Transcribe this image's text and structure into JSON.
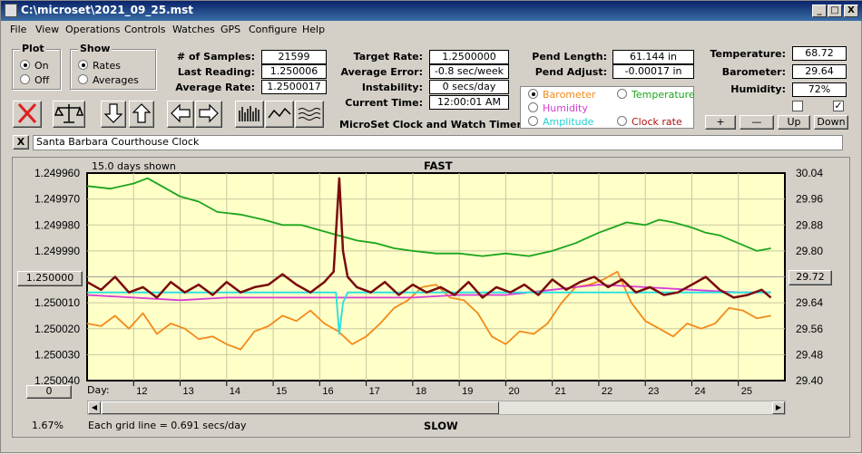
{
  "window": {
    "title": "C:\\microset\\2021_09_25.mst",
    "min_label": "_",
    "max_label": "□",
    "close_label": "X"
  },
  "menu": [
    "File",
    "View",
    "Operations",
    "Controls",
    "Watches",
    "GPS",
    "Configure",
    "Help"
  ],
  "plot_group": {
    "caption": "Plot",
    "on_label": "On",
    "off_label": "Off",
    "selected": "On"
  },
  "show_group": {
    "caption": "Show",
    "rates_label": "Rates",
    "averages_label": "Averages",
    "selected": "Rates"
  },
  "stats": {
    "samples_label": "# of Samples:",
    "samples": "21599",
    "last_label": "Last Reading:",
    "last": "1.250006",
    "avg_label": "Average Rate:",
    "avg": "1.2500017",
    "target_label": "Target Rate:",
    "target": "1.2500000",
    "avgerr_label": "Average Error:",
    "avgerr": "-0.8 sec/week",
    "instab_label": "Instability:",
    "instab": "0 secs/day",
    "time_label": "Current Time:",
    "time": "12:00:01 AM",
    "pendlen_label": "Pend Length:",
    "pendlen": "61.144 in",
    "pendadj_label": "Pend Adjust:",
    "pendadj": "-0.00017 in",
    "temp_label": "Temperature:",
    "temp": "68.72",
    "baro_label": "Barometer:",
    "baro": "29.64",
    "hum_label": "Humidity:",
    "hum": "72%"
  },
  "app_name": "MicroSet Clock and Watch Timer",
  "legend": {
    "barometer": "Barometer",
    "temperature": "Temperature",
    "humidity": "Humidity",
    "amplitude": "Amplitude",
    "clockrate": "Clock rate",
    "selected": "Barometer"
  },
  "adjust_buttons": {
    "plus": "+",
    "minus": "—",
    "up": "Up",
    "down": "Down"
  },
  "clock_name": "Santa Barbara Courthouse Clock",
  "clear_label": "X",
  "chart_data": {
    "type": "line",
    "days_shown": "15.0 days shown",
    "top_label": "FAST",
    "bottom_label": "SLOW",
    "grid_note": "Each grid line = 0.691 secs/day",
    "percent": "1.67%",
    "xlabel": "Day:",
    "x_ticks": [
      "12",
      "13",
      "14",
      "15",
      "16",
      "17",
      "18",
      "19",
      "20",
      "21",
      "22",
      "23",
      "24",
      "25"
    ],
    "left_ticks": [
      "1.249960",
      "1.249970",
      "1.249980",
      "1.249990",
      "1.250000",
      "1.250010",
      "1.250020",
      "1.250030",
      "1.250040"
    ],
    "right_ticks": [
      "30.04",
      "29.96",
      "29.88",
      "29.80",
      "29.72",
      "29.64",
      "29.56",
      "29.48",
      "29.40"
    ],
    "left_box": "1.250000",
    "right_box": "29.72",
    "bottom_box": "0",
    "xlim": [
      11.0,
      26.0
    ],
    "ylim_left": [
      1.24996,
      1.25004
    ],
    "series": [
      {
        "name": "Temperature",
        "color": "#1BA51B",
        "x": [
          11.0,
          11.5,
          12.0,
          12.3,
          12.6,
          13.0,
          13.4,
          13.8,
          14.3,
          14.8,
          15.2,
          15.6,
          16.0,
          16.4,
          16.8,
          17.2,
          17.6,
          18.0,
          18.5,
          19.0,
          19.5,
          20.0,
          20.5,
          21.0,
          21.5,
          22.0,
          22.3,
          22.6,
          23.0,
          23.3,
          23.6,
          24.0,
          24.3,
          24.6,
          25.0,
          25.4,
          25.7
        ],
        "y": [
          1.249965,
          1.249966,
          1.249964,
          1.249962,
          1.249965,
          1.249969,
          1.249971,
          1.249975,
          1.249976,
          1.249978,
          1.24998,
          1.24998,
          1.249982,
          1.249984,
          1.249986,
          1.249987,
          1.249989,
          1.24999,
          1.249991,
          1.249991,
          1.249992,
          1.249991,
          1.249992,
          1.24999,
          1.249987,
          1.249983,
          1.249981,
          1.249979,
          1.24998,
          1.249978,
          1.249979,
          1.249981,
          1.249983,
          1.249984,
          1.249987,
          1.24999,
          1.249989
        ]
      },
      {
        "name": "Barometer",
        "color": "#F28A1A",
        "x": [
          11.0,
          11.3,
          11.6,
          11.9,
          12.2,
          12.5,
          12.8,
          13.1,
          13.4,
          13.7,
          14.0,
          14.3,
          14.6,
          14.9,
          15.2,
          15.5,
          15.8,
          16.1,
          16.4,
          16.7,
          17.0,
          17.3,
          17.6,
          17.9,
          18.2,
          18.5,
          18.8,
          19.1,
          19.4,
          19.7,
          20.0,
          20.3,
          20.6,
          20.9,
          21.2,
          21.5,
          21.8,
          22.1,
          22.4,
          22.7,
          23.0,
          23.3,
          23.6,
          23.9,
          24.2,
          24.5,
          24.8,
          25.1,
          25.4,
          25.7
        ],
        "y": [
          1.250018,
          1.250019,
          1.250015,
          1.25002,
          1.250014,
          1.250022,
          1.250018,
          1.25002,
          1.250024,
          1.250023,
          1.250026,
          1.250028,
          1.250021,
          1.250019,
          1.250015,
          1.250017,
          1.250013,
          1.250018,
          1.250021,
          1.250026,
          1.250023,
          1.250018,
          1.250012,
          1.250009,
          1.250004,
          1.250003,
          1.250008,
          1.250009,
          1.250014,
          1.250023,
          1.250026,
          1.250021,
          1.250022,
          1.250018,
          1.25001,
          1.250004,
          1.250003,
          1.250001,
          1.249998,
          1.25001,
          1.250017,
          1.25002,
          1.250023,
          1.250018,
          1.25002,
          1.250018,
          1.250012,
          1.250013,
          1.250016,
          1.250015
        ]
      },
      {
        "name": "Humidity",
        "color": "#D63CD6",
        "x": [
          11.0,
          12.0,
          13.0,
          14.0,
          15.0,
          16.0,
          17.0,
          18.0,
          19.0,
          20.0,
          21.0,
          22.0,
          23.0,
          24.0,
          25.0,
          25.7
        ],
        "y": [
          1.250007,
          1.250008,
          1.250009,
          1.250008,
          1.250008,
          1.250008,
          1.250008,
          1.250008,
          1.250007,
          1.250007,
          1.250005,
          1.250003,
          1.250004,
          1.250005,
          1.250006,
          1.250006
        ]
      },
      {
        "name": "Amplitude",
        "color": "#22E0E0",
        "x": [
          11.0,
          12.0,
          13.0,
          14.0,
          15.0,
          16.0,
          16.35,
          16.42,
          16.5,
          16.6,
          17.0,
          18.0,
          19.0,
          20.0,
          21.0,
          22.0,
          23.0,
          24.0,
          25.0,
          25.7
        ],
        "y": [
          1.250006,
          1.250006,
          1.250006,
          1.250006,
          1.250006,
          1.250006,
          1.250006,
          1.250022,
          1.25001,
          1.250006,
          1.250006,
          1.250006,
          1.250006,
          1.250006,
          1.250006,
          1.250006,
          1.250006,
          1.250006,
          1.250006,
          1.250006
        ]
      },
      {
        "name": "Clock rate",
        "color": "#7A0B0B",
        "x": [
          11.0,
          11.3,
          11.6,
          11.9,
          12.2,
          12.5,
          12.8,
          13.1,
          13.4,
          13.7,
          14.0,
          14.3,
          14.6,
          14.9,
          15.2,
          15.5,
          15.8,
          16.1,
          16.3,
          16.42,
          16.5,
          16.6,
          16.8,
          17.1,
          17.4,
          17.7,
          18.0,
          18.3,
          18.6,
          18.9,
          19.2,
          19.5,
          19.8,
          20.1,
          20.4,
          20.7,
          21.0,
          21.3,
          21.6,
          21.9,
          22.2,
          22.5,
          22.8,
          23.1,
          23.4,
          23.7,
          24.0,
          24.3,
          24.6,
          24.9,
          25.2,
          25.5,
          25.7
        ],
        "y": [
          1.250002,
          1.250005,
          1.25,
          1.250006,
          1.250004,
          1.250008,
          1.250002,
          1.250006,
          1.250003,
          1.250007,
          1.250002,
          1.250006,
          1.250004,
          1.250003,
          1.249999,
          1.250003,
          1.250006,
          1.250002,
          1.249998,
          1.249962,
          1.24999,
          1.25,
          1.250004,
          1.250006,
          1.250002,
          1.250007,
          1.250003,
          1.250006,
          1.250004,
          1.250007,
          1.250002,
          1.250008,
          1.250004,
          1.250006,
          1.250003,
          1.250007,
          1.250001,
          1.250005,
          1.250002,
          1.25,
          1.250004,
          1.250001,
          1.250006,
          1.250004,
          1.250007,
          1.250006,
          1.250003,
          1.25,
          1.250005,
          1.250008,
          1.250007,
          1.250005,
          1.250008
        ]
      }
    ]
  }
}
